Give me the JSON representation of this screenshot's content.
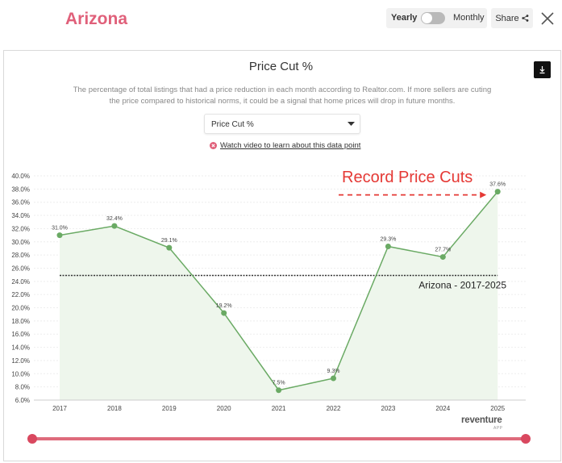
{
  "header": {
    "title": "Arizona",
    "toggle_yearly": "Yearly",
    "toggle_monthly": "Monthly",
    "share_label": "Share"
  },
  "panel": {
    "title": "Price Cut %",
    "description": "The percentage of total listings that had a price reduction in each month according to Realtor.com. If more sellers are cuting the price compared to historical norms, it could be a signal that home prices will drop in future months.",
    "select_value": "Price Cut %",
    "video_link": "Watch video to learn about this data point"
  },
  "logo": {
    "main": "reventure",
    "sub": "APP"
  },
  "colors": {
    "brand": "#e0607a",
    "series": "#6aaa64",
    "area_fill": "#eef6ec",
    "annotation_red": "#e53935",
    "slider": "#de6b7c"
  },
  "chart_data": {
    "type": "area",
    "x": [
      "2017",
      "2018",
      "2019",
      "2020",
      "2021",
      "2022",
      "2023",
      "2024",
      "2025"
    ],
    "series": [
      {
        "name": "",
        "values": [
          31.0,
          32.4,
          29.1,
          19.2,
          7.5,
          9.3,
          29.3,
          27.7,
          37.6
        ]
      }
    ],
    "point_labels": [
      "31.0%",
      "32.4%",
      "29.1%",
      "19.2%",
      "7.5%",
      "9.3%",
      "29.3%",
      "27.7%",
      "37.6%"
    ],
    "y_ticks": [
      6,
      8,
      10,
      12,
      14,
      16,
      18,
      20,
      22,
      24,
      26,
      28,
      30,
      32,
      34,
      36,
      38,
      40
    ],
    "y_tick_labels": [
      "6.0%",
      "8.0%",
      "10.0%",
      "12.0%",
      "14.0%",
      "16.0%",
      "18.0%",
      "20.0%",
      "22.0%",
      "24.0%",
      "26.0%",
      "28.0%",
      "30.0%",
      "32.0%",
      "34.0%",
      "36.0%",
      "38.0%",
      "40.0%"
    ],
    "ylim": [
      6,
      40
    ],
    "grid": true,
    "reference_line": {
      "label": "Arizona - 2017-2025",
      "value": 24.9
    },
    "annotation": {
      "text": "Record Price Cuts"
    },
    "title": "Price Cut %",
    "xlabel": "",
    "ylabel": ""
  }
}
